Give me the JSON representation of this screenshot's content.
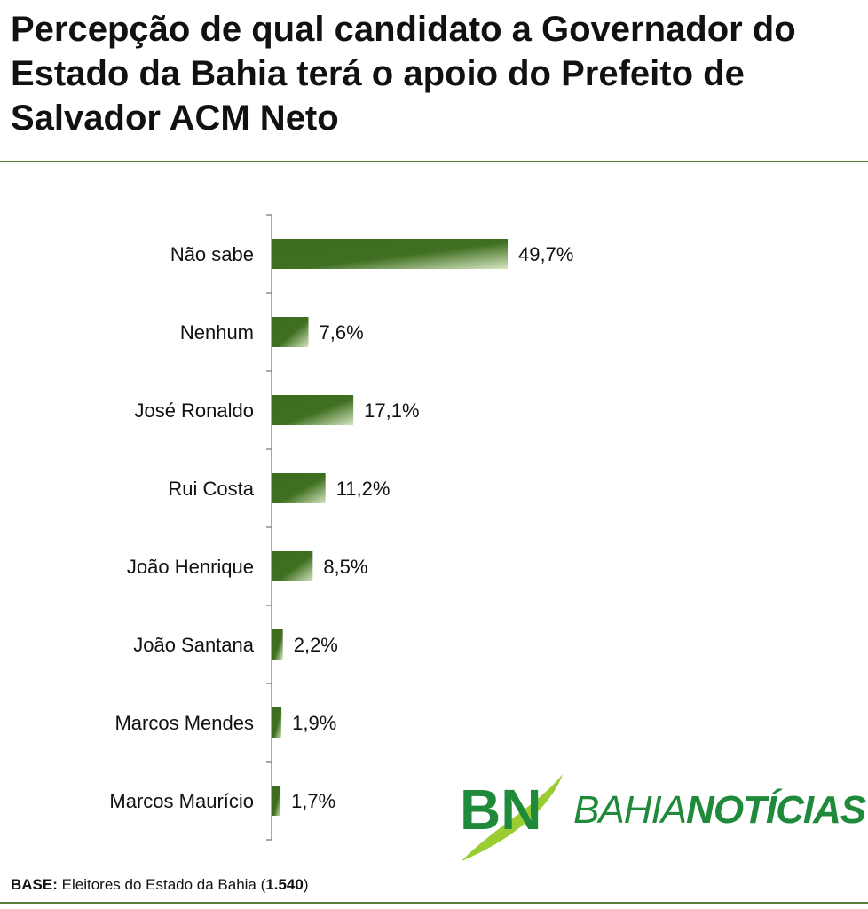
{
  "title": "Percepção de qual candidato a Governador do Estado da Bahia terá o apoio do Prefeito de Salvador ACM Neto",
  "base": {
    "label": "BASE:",
    "text_before": " Eleitores do Estado da Bahia (",
    "count": "1.540",
    "text_after": ")"
  },
  "logo": {
    "mark_text": "BN",
    "name_light": "BAHIA",
    "name_bold": "NOTÍCIAS"
  },
  "colors": {
    "bar": "#3d6b1f",
    "bar_highlight": "#cfe1b9",
    "rule": "#5b7f3a",
    "brand_green": "#1f8a3a",
    "brand_lime": "#9acd32"
  },
  "chart_data": {
    "type": "bar",
    "orientation": "horizontal",
    "categories": [
      "Não sabe",
      "Nenhum",
      "José Ronaldo",
      "Rui Costa",
      "João Henrique",
      "João Santana",
      "Marcos Mendes",
      "Marcos Maurício"
    ],
    "values": [
      49.7,
      7.6,
      17.1,
      11.2,
      8.5,
      2.2,
      1.9,
      1.7
    ],
    "value_labels": [
      "49,7%",
      "7,6%",
      "17,1%",
      "11,2%",
      "8,5%",
      "2,2%",
      "1,9%",
      "1,7%"
    ],
    "unit": "%",
    "xlim": [
      0,
      100
    ],
    "grid": false,
    "legend": "none"
  }
}
